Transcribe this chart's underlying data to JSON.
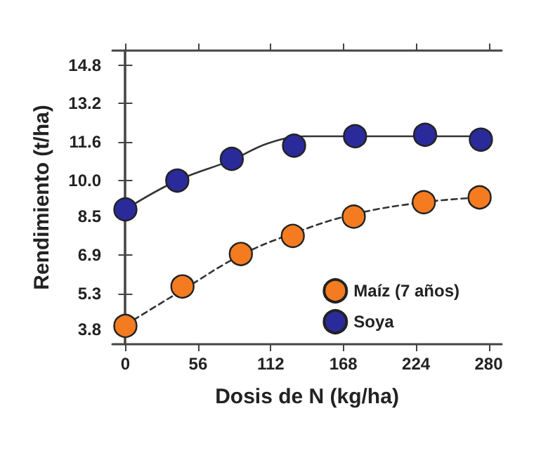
{
  "chart_data": {
    "type": "scatter",
    "xlabel": "Dosis de N (kg/ha)",
    "ylabel": "Rendimiento (t/ha)",
    "xlim": [
      -10,
      290
    ],
    "xticks": [
      0,
      56,
      112,
      168,
      224,
      280
    ],
    "ylim": [
      3.2,
      15.4
    ],
    "yticks": [
      3.8,
      5.3,
      6.9,
      8.5,
      {
        "value": 10,
        "label": "10.0"
      },
      11.6,
      13.2,
      14.8
    ],
    "grid": false,
    "legend": "bottom right",
    "marker": "circle",
    "series": [
      {
        "type": "line",
        "color": "#333333",
        "line_style": "solid",
        "marker": "none",
        "x": [
          0,
          40,
          82,
          110,
          139,
          274
        ],
        "values": [
          8.8,
          10.0,
          10.85,
          11.55,
          11.84,
          11.84
        ]
      },
      {
        "type": "line",
        "color": "#333333",
        "line_style": "dashed",
        "marker": "none",
        "x": [
          0,
          44,
          89,
          129,
          176,
          230,
          274
        ],
        "values": [
          4.0,
          5.45,
          6.9,
          7.8,
          8.6,
          9.1,
          9.3
        ]
      },
      {
        "name": "Maíz (7 años)",
        "color": "#f47b20",
        "x": [
          0,
          44,
          89,
          129,
          176,
          230,
          273
        ],
        "values": [
          3.96,
          5.6,
          6.95,
          7.7,
          8.5,
          9.1,
          9.3
        ]
      },
      {
        "name": "Soya",
        "color": "#2b2a9a",
        "x": [
          0,
          40,
          82,
          130,
          177,
          231,
          274
        ],
        "values": [
          8.8,
          10.0,
          10.9,
          11.45,
          11.84,
          11.9,
          11.7
        ]
      }
    ]
  }
}
